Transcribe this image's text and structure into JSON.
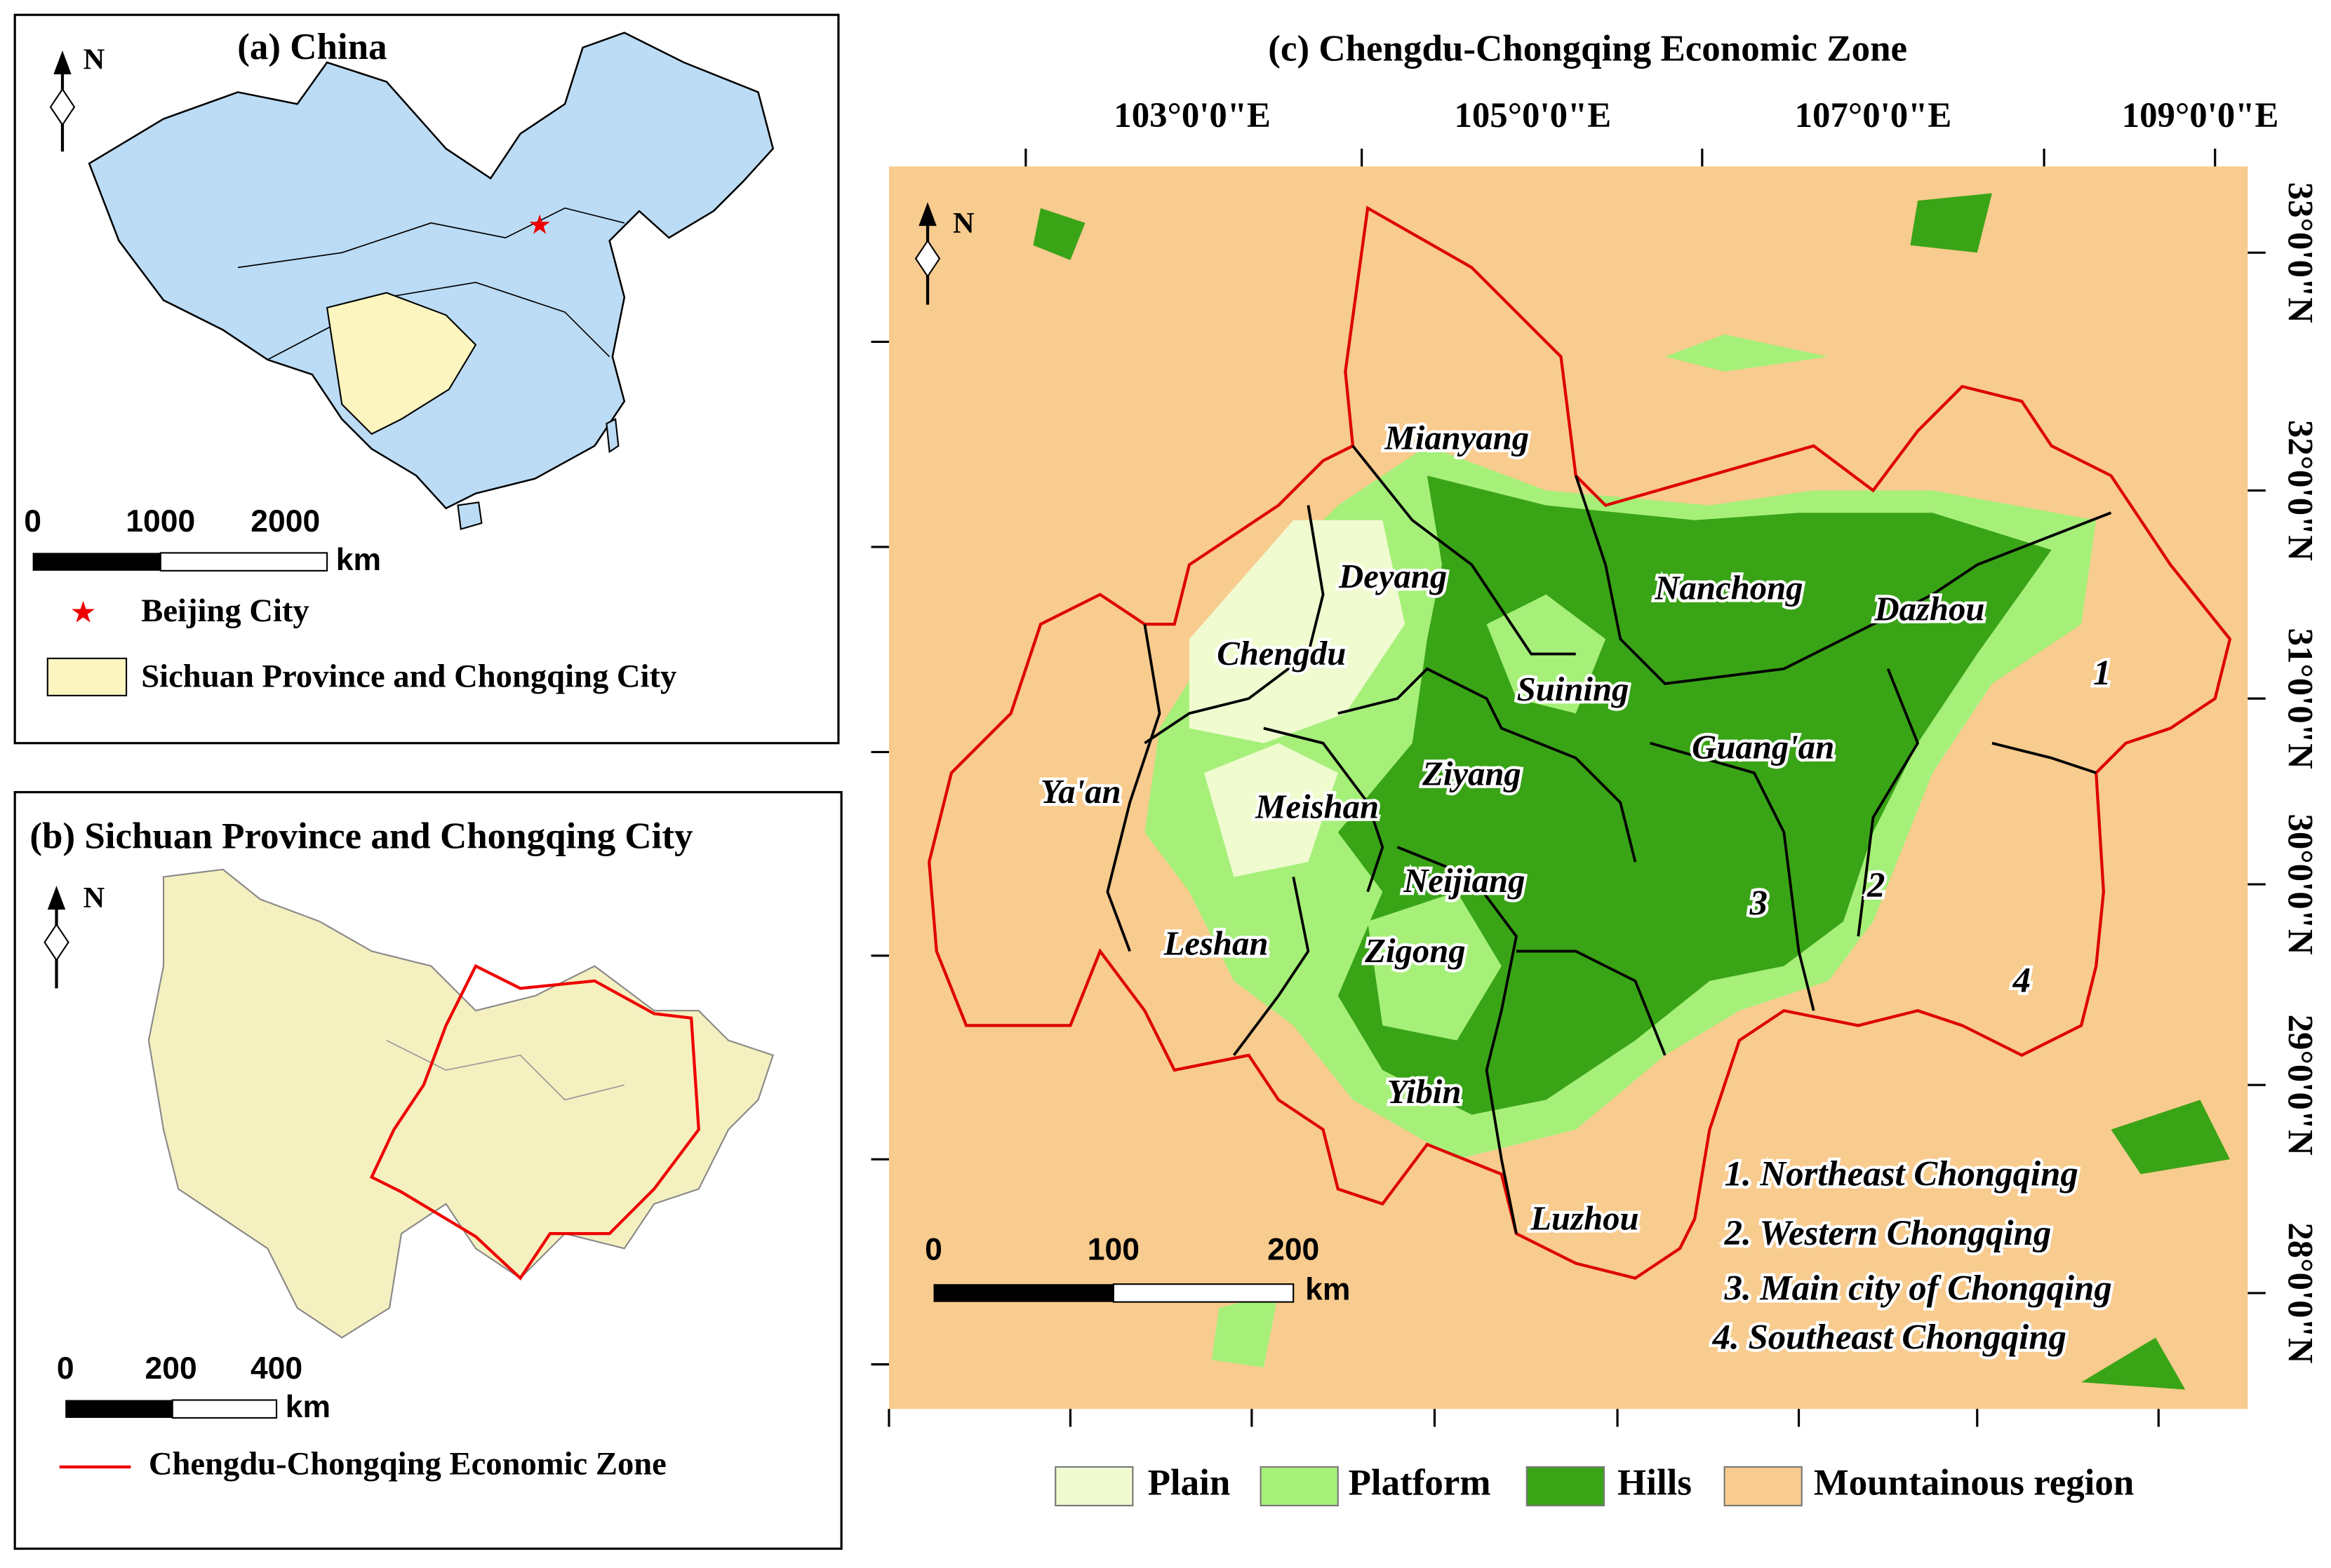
{
  "panel_a": {
    "title": "(a)  China",
    "north": "N",
    "scale": {
      "ticks": [
        0,
        1000,
        2000
      ],
      "unit": "km"
    },
    "legend": [
      {
        "label": "Beijing City"
      },
      {
        "label": "Sichuan Province and Chongqing City"
      }
    ]
  },
  "panel_b": {
    "title": "(b)  Sichuan Province and Chongqing City",
    "north": "N",
    "scale": {
      "ticks": [
        0,
        200,
        400
      ],
      "unit": "km"
    },
    "legend": [
      {
        "label": "Chengdu-Chongqing Economic Zone"
      }
    ]
  },
  "panel_c": {
    "title": "(c)  Chengdu-Chongqing Economic Zone",
    "north": "N",
    "longitudes": [
      "103°0'0\"E",
      "105°0'0\"E",
      "107°0'0\"E",
      "109°0'0\"E"
    ],
    "latitudes": [
      "33°0'0\"N",
      "32°0'0\"N",
      "31°0'0\"N",
      "30°0'0\"N",
      "29°0'0\"N",
      "28°0'0\"N"
    ],
    "cities": [
      "Mianyang",
      "Deyang",
      "Nanchong",
      "Dazhou",
      "Chengdu",
      "Suining",
      "Guang'an",
      "Ya'an",
      "Ziyang",
      "Meishan",
      "Neijiang",
      "Leshan",
      "Zigong",
      "Yibin",
      "Luzhou"
    ],
    "region_numbers": [
      "1",
      "2",
      "3",
      "4"
    ],
    "region_list": [
      "1.  Northeast Chongqing",
      "2.  Western Chongqing",
      "3.  Main city of Chongqing",
      "4.  Southeast Chongqing"
    ],
    "scale": {
      "ticks": [
        0,
        100,
        200
      ],
      "unit": "km"
    },
    "legend": [
      {
        "label": "Plain",
        "color": "#f0fbd0"
      },
      {
        "label": "Platform",
        "color": "#a6f07a"
      },
      {
        "label": "Hills",
        "color": "#3aa417"
      },
      {
        "label": "Mountainous region",
        "color": "#f8cb8e"
      }
    ]
  }
}
